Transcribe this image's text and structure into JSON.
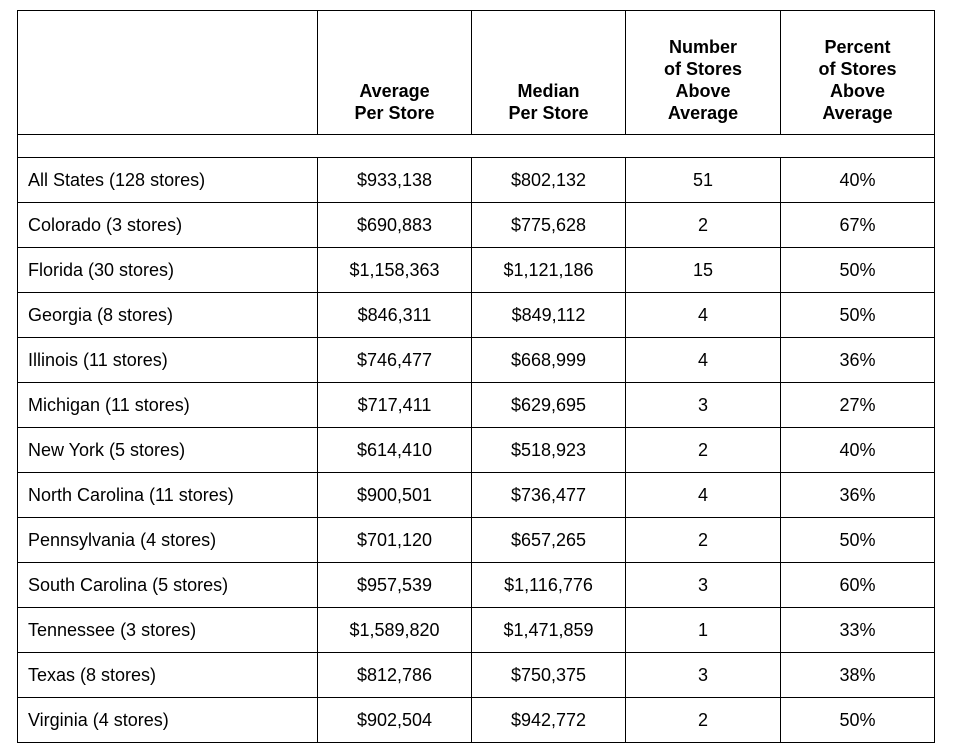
{
  "table": {
    "headers": [
      "",
      "Average\nPer Store",
      "Median\nPer Store",
      "Number\nof Stores\nAbove\nAverage",
      "Percent\nof Stores\nAbove\nAverage"
    ],
    "rows": [
      {
        "label": "All States (128 stores)",
        "average": "$933,138",
        "median": "$802,132",
        "count": "51",
        "percent": "40%"
      },
      {
        "label": "Colorado (3 stores)",
        "average": "$690,883",
        "median": "$775,628",
        "count": "2",
        "percent": "67%"
      },
      {
        "label": "Florida (30 stores)",
        "average": "$1,158,363",
        "median": "$1,121,186",
        "count": "15",
        "percent": "50%"
      },
      {
        "label": "Georgia (8 stores)",
        "average": "$846,311",
        "median": "$849,112",
        "count": "4",
        "percent": "50%"
      },
      {
        "label": "Illinois (11 stores)",
        "average": "$746,477",
        "median": "$668,999",
        "count": "4",
        "percent": "36%"
      },
      {
        "label": "Michigan (11 stores)",
        "average": "$717,411",
        "median": "$629,695",
        "count": "3",
        "percent": "27%"
      },
      {
        "label": "New York (5 stores)",
        "average": "$614,410",
        "median": "$518,923",
        "count": "2",
        "percent": "40%"
      },
      {
        "label": "North Carolina (11 stores)",
        "average": "$900,501",
        "median": "$736,477",
        "count": "4",
        "percent": "36%"
      },
      {
        "label": "Pennsylvania (4 stores)",
        "average": "$701,120",
        "median": "$657,265",
        "count": "2",
        "percent": "50%"
      },
      {
        "label": "South Carolina (5 stores)",
        "average": "$957,539",
        "median": "$1,116,776",
        "count": "3",
        "percent": "60%"
      },
      {
        "label": "Tennessee (3 stores)",
        "average": "$1,589,820",
        "median": "$1,471,859",
        "count": "1",
        "percent": "33%"
      },
      {
        "label": "Texas (8 stores)",
        "average": "$812,786",
        "median": "$750,375",
        "count": "3",
        "percent": "38%"
      },
      {
        "label": "Virginia (4 stores)",
        "average": "$902,504",
        "median": "$942,772",
        "count": "2",
        "percent": "50%"
      }
    ]
  }
}
